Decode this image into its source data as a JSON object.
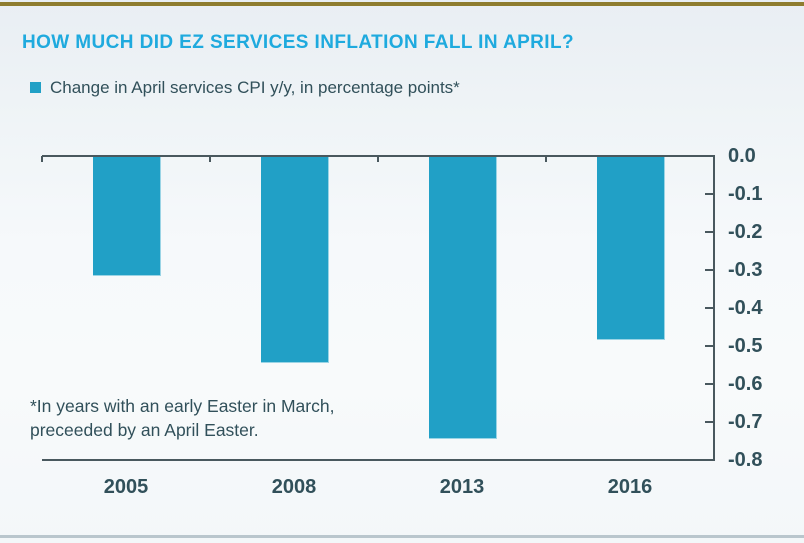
{
  "header": {
    "title": "HOW MUCH DID EZ SERVICES INFLATION FALL IN APRIL?"
  },
  "legend": {
    "label": "Change in April services CPI y/y, in percentage points*"
  },
  "footnote": {
    "line1": "*In years with an early Easter in March,",
    "line2": "preceeded by an April Easter."
  },
  "colors": {
    "accent_title": "#1faade",
    "bar_fill": "#21a0c6",
    "text_dark": "#31505a",
    "axis_dark": "#49585e",
    "top_accent_gold": "#8e7c2f",
    "bottom_divider_gray": "#b9c6cd"
  },
  "chart_data": {
    "type": "bar",
    "title": "HOW MUCH DID EZ SERVICES INFLATION FALL IN APRIL?",
    "series_name": "Change in April services CPI y/y, in percentage points*",
    "categories": [
      "2005",
      "2008",
      "2013",
      "2016"
    ],
    "values": [
      -0.31,
      -0.54,
      -0.74,
      -0.48
    ],
    "xlabel": "",
    "ylabel": "",
    "ylim": [
      -0.8,
      0.0
    ],
    "y_ticks": [
      "0.0",
      "-0.1",
      "-0.2",
      "-0.3",
      "-0.4",
      "-0.5",
      "-0.6",
      "-0.7",
      "-0.8"
    ],
    "y_axis_side": "right",
    "grid": false,
    "legend_position": "top-left",
    "bar_color": "#21a0c6"
  }
}
